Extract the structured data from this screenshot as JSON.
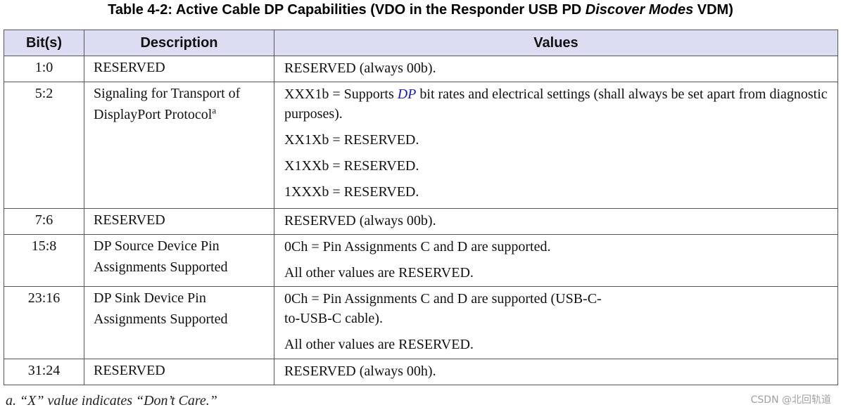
{
  "title": {
    "prefix": "Table 4-2: Active Cable DP Capabilities (VDO in the Responder USB PD ",
    "italic": "Discover Modes",
    "suffix": " VDM)"
  },
  "headers": [
    "Bit(s)",
    "Description",
    "Values"
  ],
  "rows": [
    {
      "bits": "1:0",
      "description": "RESERVED",
      "values": [
        "RESERVED (always 00b)."
      ]
    },
    {
      "bits": "5:2",
      "description": "Signaling for Transport of DisplayPort Protocol",
      "description_sup": "a",
      "values_first": {
        "before": "XXX1b = Supports ",
        "highlight": "DP",
        "after": " bit rates and electrical settings (shall always be set apart from diagnostic purposes)."
      },
      "values": [
        "XX1Xb = RESERVED.",
        "X1XXb = RESERVED.",
        "1XXXb = RESERVED."
      ]
    },
    {
      "bits": "7:6",
      "description": "RESERVED",
      "values": [
        "RESERVED (always 00b)."
      ]
    },
    {
      "bits": "15:8",
      "description": "DP Source Device Pin Assignments Supported",
      "values": [
        "0Ch = Pin Assignments C and D are supported.",
        "All other values are RESERVED."
      ]
    },
    {
      "bits": "23:16",
      "description": "DP Sink Device Pin Assignments Supported",
      "values": [
        "0Ch = Pin Assignments C and D are supported (USB-C-to-USB-C cable).",
        "All other values are RESERVED."
      ]
    },
    {
      "bits": "31:24",
      "description": "RESERVED",
      "values": [
        "RESERVED (always 00h)."
      ]
    }
  ],
  "footnote": "a.   “X” value indicates “Don’t Care.”",
  "watermark": "CSDN @北回轨道"
}
